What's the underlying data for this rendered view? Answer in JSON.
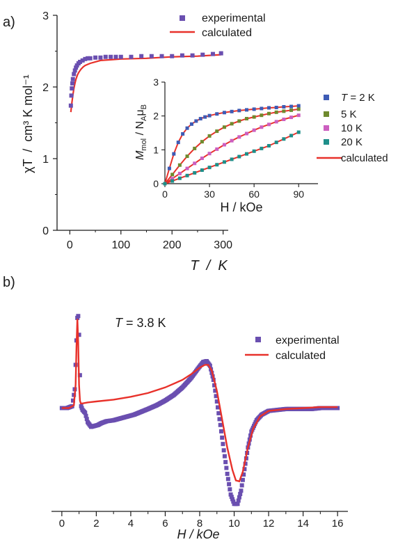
{
  "panels": {
    "a_label": "a)",
    "b_label": "b)"
  },
  "colors": {
    "experimental": "#6a4fb0",
    "calculated": "#e8312a",
    "axis": "#1a1a1a"
  },
  "chart_data": [
    {
      "id": "main-a",
      "type": "scatter",
      "xlabel": "T  /  K",
      "ylabel": "χT  /  cm³ K mol⁻¹",
      "xlim": [
        -25,
        310
      ],
      "ylim": [
        0,
        3
      ],
      "xticks": [
        0,
        100,
        200,
        300
      ],
      "yticks": [
        0,
        1,
        2,
        3
      ],
      "legend_position": "top-center",
      "series": [
        {
          "name": "experimental",
          "kind": "markers",
          "color": "#6a4fb0",
          "x": [
            2,
            3,
            4,
            5,
            6,
            8,
            10,
            12,
            14,
            17,
            20,
            25,
            30,
            35,
            40,
            50,
            60,
            70,
            80,
            90,
            100,
            120,
            140,
            160,
            180,
            200,
            220,
            240,
            260,
            280,
            296
          ],
          "y": [
            1.74,
            1.88,
            1.98,
            2.05,
            2.11,
            2.18,
            2.23,
            2.27,
            2.3,
            2.33,
            2.35,
            2.37,
            2.39,
            2.4,
            2.4,
            2.41,
            2.41,
            2.42,
            2.42,
            2.42,
            2.42,
            2.42,
            2.43,
            2.43,
            2.43,
            2.43,
            2.44,
            2.44,
            2.45,
            2.46,
            2.47
          ]
        },
        {
          "name": "calculated",
          "kind": "line",
          "color": "#e8312a",
          "x": [
            2,
            4,
            6,
            8,
            10,
            12,
            15,
            18,
            22,
            26,
            30,
            40,
            50,
            60,
            80,
            100,
            150,
            200,
            250,
            296
          ],
          "y": [
            1.65,
            1.78,
            1.89,
            1.98,
            2.05,
            2.11,
            2.17,
            2.21,
            2.25,
            2.28,
            2.3,
            2.33,
            2.35,
            2.37,
            2.38,
            2.39,
            2.4,
            2.42,
            2.43,
            2.45
          ]
        }
      ]
    },
    {
      "id": "inset-a",
      "type": "scatter",
      "xlabel": "H / kOe",
      "ylabel_main": "M",
      "ylabel_sub1": "mol",
      "ylabel_mid": " / N",
      "ylabel_sub2": "A",
      "ylabel_mu": "μ",
      "ylabel_sub3": "B",
      "xlim": [
        0,
        103
      ],
      "ylim": [
        0,
        3
      ],
      "xticks": [
        0,
        30,
        60,
        90
      ],
      "yticks": [
        0,
        1,
        2,
        3
      ],
      "legend_position": "right",
      "series": [
        {
          "name": "2 K",
          "legend_prefix": "T",
          "legend_text": " = 2 K",
          "color": "#3d5bb5",
          "kind": "markers",
          "x": [
            0,
            3,
            6,
            9,
            12,
            15,
            18,
            21,
            24,
            27,
            30,
            35,
            40,
            45,
            50,
            55,
            60,
            65,
            70,
            75,
            80,
            85,
            90
          ],
          "y": [
            0,
            0.45,
            0.88,
            1.22,
            1.47,
            1.64,
            1.76,
            1.85,
            1.92,
            1.97,
            2.01,
            2.06,
            2.1,
            2.13,
            2.16,
            2.18,
            2.2,
            2.22,
            2.24,
            2.25,
            2.27,
            2.28,
            2.3
          ]
        },
        {
          "name": "5 K",
          "legend_text": "5 K",
          "color": "#6f8a2e",
          "kind": "markers",
          "x": [
            0,
            5,
            10,
            15,
            20,
            25,
            30,
            35,
            40,
            45,
            50,
            55,
            60,
            65,
            70,
            75,
            80,
            85,
            90
          ],
          "y": [
            0,
            0.27,
            0.55,
            0.81,
            1.04,
            1.24,
            1.41,
            1.55,
            1.67,
            1.77,
            1.85,
            1.92,
            1.97,
            2.02,
            2.07,
            2.11,
            2.14,
            2.17,
            2.2
          ]
        },
        {
          "name": "10 K",
          "legend_text": "10 K",
          "color": "#cc5fc0",
          "kind": "markers",
          "x": [
            0,
            5,
            10,
            15,
            20,
            25,
            30,
            35,
            40,
            45,
            50,
            55,
            60,
            65,
            70,
            75,
            80,
            85,
            90
          ],
          "y": [
            0,
            0.15,
            0.3,
            0.45,
            0.6,
            0.75,
            0.89,
            1.02,
            1.15,
            1.27,
            1.38,
            1.48,
            1.58,
            1.67,
            1.75,
            1.83,
            1.9,
            1.96,
            2.02
          ]
        },
        {
          "name": "20 K",
          "legend_text": "20 K",
          "color": "#1e8f8a",
          "kind": "markers",
          "x": [
            0,
            5,
            10,
            15,
            20,
            25,
            30,
            35,
            40,
            45,
            50,
            55,
            60,
            65,
            70,
            75,
            80,
            85,
            90
          ],
          "y": [
            0,
            0.08,
            0.16,
            0.24,
            0.32,
            0.4,
            0.48,
            0.56,
            0.64,
            0.72,
            0.8,
            0.88,
            0.96,
            1.04,
            1.12,
            1.22,
            1.32,
            1.42,
            1.52
          ]
        },
        {
          "name": "calculated",
          "legend_text": "calculated",
          "color": "#e8312a",
          "kind": "line-per-curve"
        }
      ]
    },
    {
      "id": "main-b",
      "type": "scatter",
      "title_prefix": "T",
      "title_rest": " = 3.8 K",
      "xlabel": "H / kOe",
      "xlim": [
        -0.6,
        16.6
      ],
      "ylim": [
        -1.1,
        1.1
      ],
      "xticks": [
        0,
        2,
        4,
        6,
        8,
        10,
        12,
        14,
        16
      ],
      "yaxis_visible": false,
      "legend_position": "top-right",
      "series": [
        {
          "name": "experimental",
          "kind": "markers",
          "color": "#6a4fb0",
          "x": [
            0,
            0.3,
            0.6,
            0.75,
            0.85,
            0.9,
            0.95,
            1.0,
            1.05,
            1.12,
            1.2,
            1.35,
            1.5,
            1.7,
            1.9,
            2.1,
            2.3,
            2.6,
            3.0,
            3.4,
            3.8,
            4.2,
            4.6,
            5.0,
            5.5,
            6.0,
            6.5,
            7.0,
            7.5,
            7.9,
            8.2,
            8.4,
            8.6,
            8.8,
            9.0,
            9.2,
            9.4,
            9.6,
            9.8,
            10.0,
            10.2,
            10.4,
            10.6,
            10.8,
            11.0,
            11.3,
            11.6,
            12.0,
            12.5,
            13.0,
            13.5,
            14.0,
            14.5,
            15.0,
            15.5,
            16.0
          ],
          "y": [
            0.0,
            0.0,
            0.02,
            0.2,
            0.72,
            0.96,
            0.98,
            0.78,
            0.35,
            0.02,
            -0.02,
            -0.05,
            -0.15,
            -0.2,
            -0.19,
            -0.18,
            -0.16,
            -0.14,
            -0.13,
            -0.11,
            -0.09,
            -0.07,
            -0.04,
            -0.01,
            0.03,
            0.08,
            0.14,
            0.22,
            0.32,
            0.42,
            0.49,
            0.5,
            0.45,
            0.3,
            0.07,
            -0.18,
            -0.45,
            -0.7,
            -0.92,
            -1.02,
            -1.02,
            -0.88,
            -0.65,
            -0.42,
            -0.25,
            -0.13,
            -0.07,
            -0.03,
            -0.02,
            -0.01,
            -0.01,
            -0.01,
            -0.01,
            0.0,
            0.0,
            0.0
          ]
        },
        {
          "name": "calculated",
          "kind": "line",
          "color": "#e8312a",
          "x": [
            0,
            0.4,
            0.7,
            0.8,
            0.85,
            0.9,
            0.95,
            1.0,
            1.05,
            1.1,
            1.2,
            1.5,
            2.0,
            3.0,
            4.0,
            5.0,
            6.0,
            7.0,
            7.5,
            8.0,
            8.3,
            8.5,
            8.7,
            9.0,
            9.3,
            9.6,
            9.9,
            10.1,
            10.3,
            10.5,
            10.8,
            11.1,
            11.5,
            12.0,
            13.0,
            14.0,
            15.0,
            16.0
          ],
          "y": [
            0.0,
            0.0,
            0.03,
            0.25,
            0.65,
            0.95,
            0.7,
            0.25,
            0.08,
            0.05,
            0.05,
            0.06,
            0.07,
            0.09,
            0.12,
            0.16,
            0.22,
            0.3,
            0.36,
            0.43,
            0.46,
            0.46,
            0.4,
            0.18,
            -0.12,
            -0.42,
            -0.66,
            -0.77,
            -0.78,
            -0.68,
            -0.42,
            -0.22,
            -0.09,
            -0.03,
            -0.01,
            0.0,
            0.01,
            0.01
          ]
        }
      ]
    }
  ]
}
